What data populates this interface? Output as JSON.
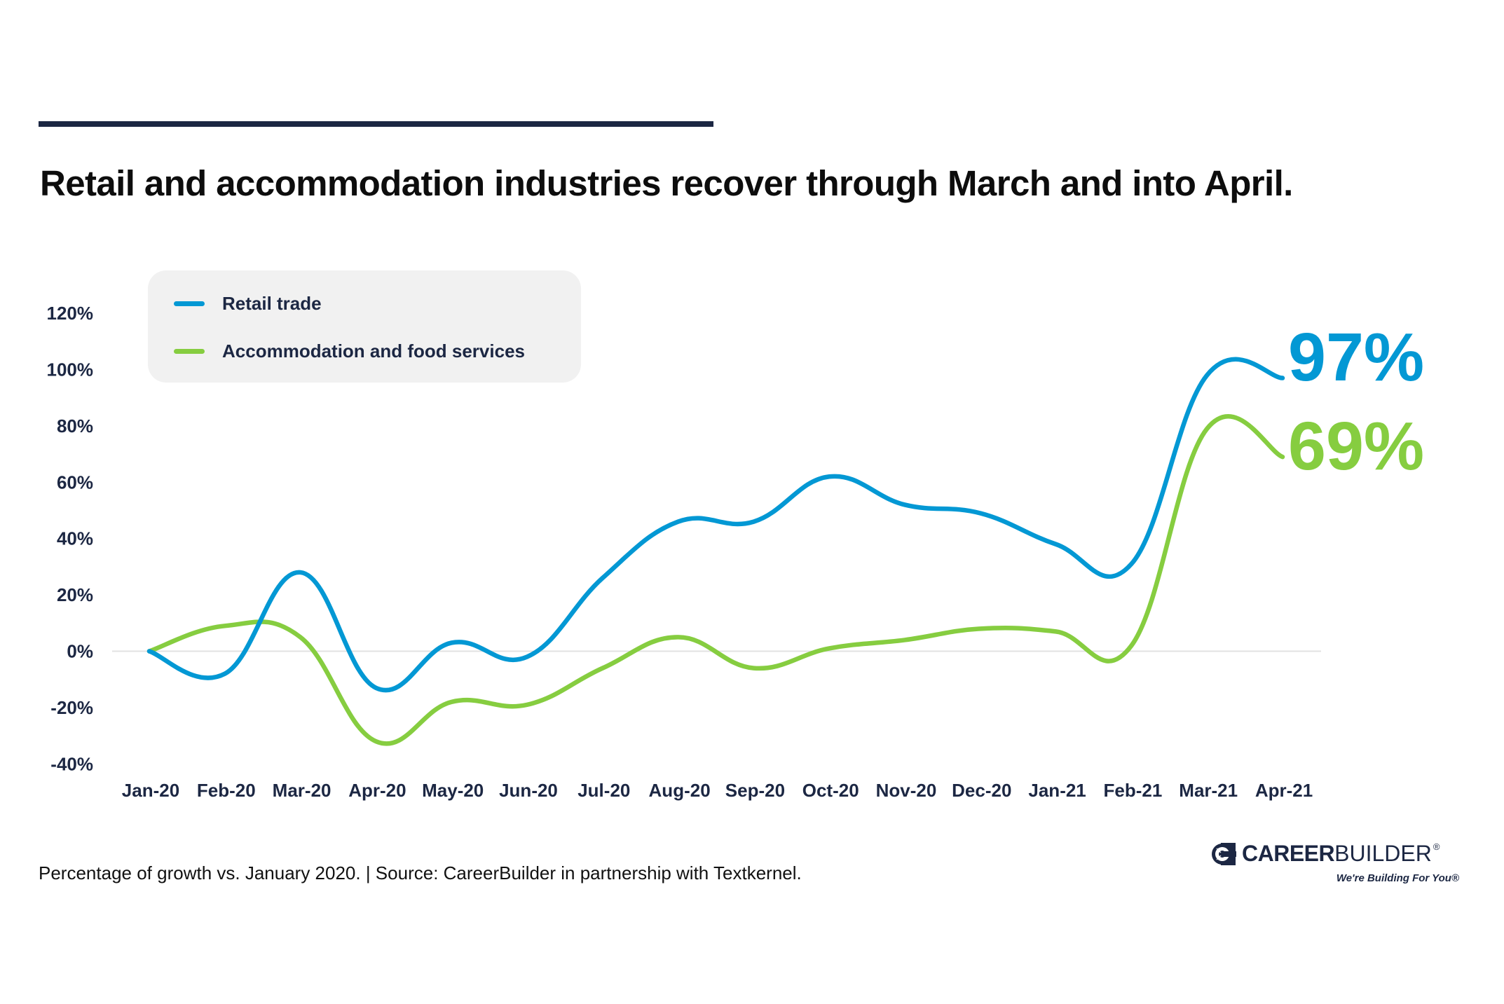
{
  "header": {
    "title": "Retail and accommodation industries recover through March and into April."
  },
  "legend": {
    "items": [
      {
        "label": "Retail trade",
        "color": "#0398d4"
      },
      {
        "label": "Accommodation and food services",
        "color": "#86cd40"
      }
    ]
  },
  "end_labels": {
    "retail": "97%",
    "accommodation": "69%"
  },
  "footer": {
    "note": "Percentage of growth vs. January 2020. | Source: CareerBuilder in partnership with Textkernel."
  },
  "logo": {
    "name_bold": "CAREER",
    "name_light": "BUILDER",
    "registered": "®",
    "tagline": "We're Building For You®"
  },
  "colors": {
    "text_dark": "#1c2743",
    "retail": "#0398d4",
    "accommodation": "#86cd40",
    "zero_line": "#e2e2e2",
    "legend_bg": "#f1f1f1"
  },
  "chart_data": {
    "type": "line",
    "title": "Retail and accommodation industries recover through March and into April.",
    "xlabel": "",
    "ylabel": "",
    "categories": [
      "Jan-20",
      "Feb-20",
      "Mar-20",
      "Apr-20",
      "May-20",
      "Jun-20",
      "Jul-20",
      "Aug-20",
      "Sep-20",
      "Oct-20",
      "Nov-20",
      "Dec-20",
      "Jan-21",
      "Feb-21",
      "Mar-21",
      "Apr-21"
    ],
    "series": [
      {
        "name": "Retail trade",
        "color": "#0398d4",
        "values": [
          0,
          -8,
          28,
          -13,
          3,
          -2,
          26,
          46,
          46,
          62,
          52,
          49,
          38,
          31,
          98,
          97
        ]
      },
      {
        "name": "Accommodation and food services",
        "color": "#86cd40",
        "values": [
          0,
          9,
          5,
          -32,
          -18,
          -19,
          -6,
          5,
          -6,
          1,
          4,
          8,
          7,
          2,
          79,
          69
        ]
      }
    ],
    "yticks": [
      120,
      100,
      80,
      60,
      40,
      20,
      0,
      -20,
      -40
    ],
    "ytick_labels": [
      "120%",
      "100%",
      "80%",
      "60%",
      "40%",
      "20%",
      "0%",
      "-20%",
      "-40%"
    ],
    "ylim": [
      -40,
      120
    ],
    "grid": false,
    "zero_line": true,
    "legend_position": "top-left",
    "annotations": [
      {
        "series": "Retail trade",
        "text": "97%"
      },
      {
        "series": "Accommodation and food services",
        "text": "69%"
      }
    ]
  }
}
